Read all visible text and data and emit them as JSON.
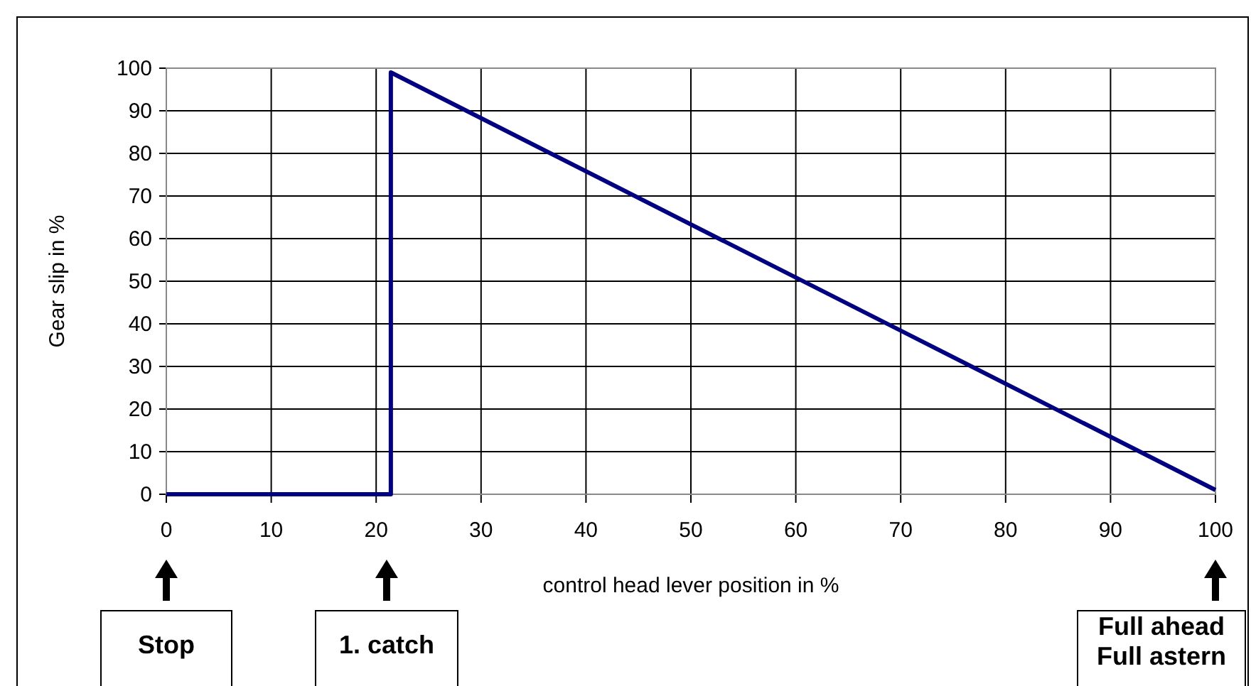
{
  "chart_data": {
    "type": "line",
    "xlabel": "control head lever position in %",
    "ylabel": "Gear slip in %",
    "x": [
      0,
      21.4,
      21.4,
      100
    ],
    "series": [
      {
        "color": "#000080",
        "values": [
          0,
          0,
          99,
          1
        ]
      }
    ],
    "xlim": [
      0,
      100
    ],
    "xticks": [
      0,
      10,
      20,
      30,
      40,
      50,
      60,
      70,
      80,
      90,
      100
    ],
    "ylim": [
      0,
      100
    ],
    "yticks": [
      0,
      10,
      20,
      30,
      40,
      50,
      60,
      70,
      80,
      90,
      100
    ],
    "grid": true,
    "marker": "none",
    "line_style": "solid",
    "annotations": [
      "Stop",
      "1. catch",
      "Full ahead\nFull astern"
    ]
  }
}
